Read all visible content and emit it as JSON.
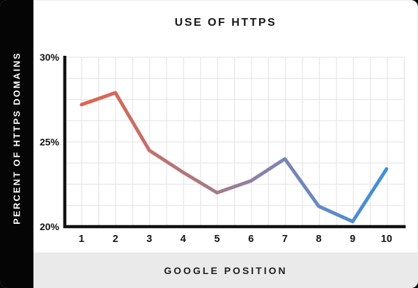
{
  "title": "USE OF HTTPS",
  "y_axis": {
    "label": "PERCENT OF HTTPS DOMAINS"
  },
  "x_axis": {
    "label": "GOOGLE POSITION"
  },
  "chart_data": {
    "type": "line",
    "title": "USE OF HTTPS",
    "xlabel": "GOOGLE POSITION",
    "ylabel": "PERCENT OF HTTPS DOMAINS",
    "x": [
      1,
      2,
      3,
      4,
      5,
      6,
      7,
      8,
      9,
      10
    ],
    "values": [
      27.2,
      27.9,
      24.5,
      23.2,
      22.0,
      22.7,
      24.0,
      21.2,
      20.3,
      23.4
    ],
    "ylim": [
      20,
      30
    ],
    "xlim": [
      1,
      10
    ],
    "x_tick_labels": [
      "1",
      "2",
      "3",
      "4",
      "5",
      "6",
      "7",
      "8",
      "9",
      "10"
    ],
    "y_ticks": [
      20,
      25,
      30
    ],
    "y_tick_labels": [
      "20%",
      "25%",
      "30%"
    ],
    "grid": true,
    "legend": "none",
    "line_gradient": [
      {
        "offset": 0.0,
        "color": "#e2634c"
      },
      {
        "offset": 0.42,
        "color": "#a87a87"
      },
      {
        "offset": 0.63,
        "color": "#8283b2"
      },
      {
        "offset": 1.0,
        "color": "#3f90da"
      }
    ]
  },
  "colors": {
    "band_black": "#050505",
    "card_white": "#ffffff",
    "footer_gray": "#eaeaea",
    "gridline": "#e7e7e7",
    "axis": "#111111",
    "tick_text": "#141414"
  }
}
